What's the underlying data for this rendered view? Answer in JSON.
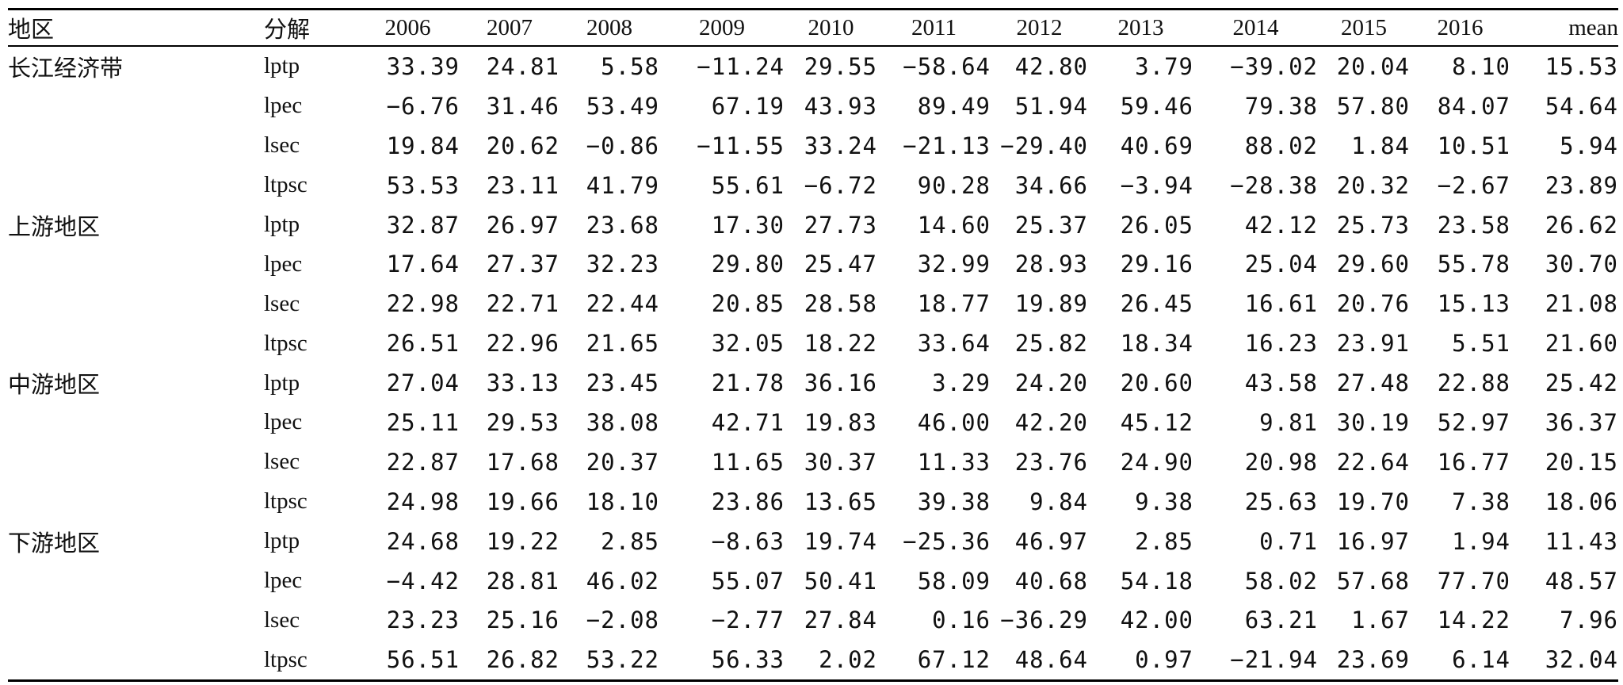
{
  "table": {
    "headers": [
      "地区",
      "分解",
      "2006",
      "2007",
      "2008",
      "2009",
      "2010",
      "2011",
      "2012",
      "2013",
      "2014",
      "2015",
      "2016",
      "mean"
    ],
    "groups": [
      {
        "region": "长江经济带",
        "rows": [
          {
            "decomp": "lptp",
            "values": [
              "33.39",
              "24.81",
              "5.58",
              "−11.24",
              "29.55",
              "−58.64",
              "42.80",
              "3.79",
              "−39.02",
              "20.04",
              "8.10",
              "15.53"
            ]
          },
          {
            "decomp": "lpec",
            "values": [
              "−6.76",
              "31.46",
              "53.49",
              "67.19",
              "43.93",
              "89.49",
              "51.94",
              "59.46",
              "79.38",
              "57.80",
              "84.07",
              "54.64"
            ]
          },
          {
            "decomp": "lsec",
            "values": [
              "19.84",
              "20.62",
              "−0.86",
              "−11.55",
              "33.24",
              "−21.13",
              "−29.40",
              "40.69",
              "88.02",
              "1.84",
              "10.51",
              "5.94"
            ]
          },
          {
            "decomp": "ltpsc",
            "values": [
              "53.53",
              "23.11",
              "41.79",
              "55.61",
              "−6.72",
              "90.28",
              "34.66",
              "−3.94",
              "−28.38",
              "20.32",
              "−2.67",
              "23.89"
            ]
          }
        ]
      },
      {
        "region": "上游地区",
        "rows": [
          {
            "decomp": "lptp",
            "values": [
              "32.87",
              "26.97",
              "23.68",
              "17.30",
              "27.73",
              "14.60",
              "25.37",
              "26.05",
              "42.12",
              "25.73",
              "23.58",
              "26.62"
            ]
          },
          {
            "decomp": "lpec",
            "values": [
              "17.64",
              "27.37",
              "32.23",
              "29.80",
              "25.47",
              "32.99",
              "28.93",
              "29.16",
              "25.04",
              "29.60",
              "55.78",
              "30.70"
            ]
          },
          {
            "decomp": "lsec",
            "values": [
              "22.98",
              "22.71",
              "22.44",
              "20.85",
              "28.58",
              "18.77",
              "19.89",
              "26.45",
              "16.61",
              "20.76",
              "15.13",
              "21.08"
            ]
          },
          {
            "decomp": "ltpsc",
            "values": [
              "26.51",
              "22.96",
              "21.65",
              "32.05",
              "18.22",
              "33.64",
              "25.82",
              "18.34",
              "16.23",
              "23.91",
              "5.51",
              "21.60"
            ]
          }
        ]
      },
      {
        "region": "中游地区",
        "rows": [
          {
            "decomp": "lptp",
            "values": [
              "27.04",
              "33.13",
              "23.45",
              "21.78",
              "36.16",
              "3.29",
              "24.20",
              "20.60",
              "43.58",
              "27.48",
              "22.88",
              "25.42"
            ]
          },
          {
            "decomp": "lpec",
            "values": [
              "25.11",
              "29.53",
              "38.08",
              "42.71",
              "19.83",
              "46.00",
              "42.20",
              "45.12",
              "9.81",
              "30.19",
              "52.97",
              "36.37"
            ]
          },
          {
            "decomp": "lsec",
            "values": [
              "22.87",
              "17.68",
              "20.37",
              "11.65",
              "30.37",
              "11.33",
              "23.76",
              "24.90",
              "20.98",
              "22.64",
              "16.77",
              "20.15"
            ]
          },
          {
            "decomp": "ltpsc",
            "values": [
              "24.98",
              "19.66",
              "18.10",
              "23.86",
              "13.65",
              "39.38",
              "9.84",
              "9.38",
              "25.63",
              "19.70",
              "7.38",
              "18.06"
            ]
          }
        ]
      },
      {
        "region": "下游地区",
        "rows": [
          {
            "decomp": "lptp",
            "values": [
              "24.68",
              "19.22",
              "2.85",
              "−8.63",
              "19.74",
              "−25.36",
              "46.97",
              "2.85",
              "0.71",
              "16.97",
              "1.94",
              "11.43"
            ]
          },
          {
            "decomp": "lpec",
            "values": [
              "−4.42",
              "28.81",
              "46.02",
              "55.07",
              "50.41",
              "58.09",
              "40.68",
              "54.18",
              "58.02",
              "57.68",
              "77.70",
              "48.57"
            ]
          },
          {
            "decomp": "lsec",
            "values": [
              "23.23",
              "25.16",
              "−2.08",
              "−2.77",
              "27.84",
              "0.16",
              "−36.29",
              "42.00",
              "63.21",
              "1.67",
              "14.22",
              "7.96"
            ]
          },
          {
            "decomp": "ltpsc",
            "values": [
              "56.51",
              "26.82",
              "53.22",
              "56.33",
              "2.02",
              "67.12",
              "48.64",
              "0.97",
              "−21.94",
              "23.69",
              "6.14",
              "32.04"
            ]
          }
        ]
      }
    ]
  }
}
